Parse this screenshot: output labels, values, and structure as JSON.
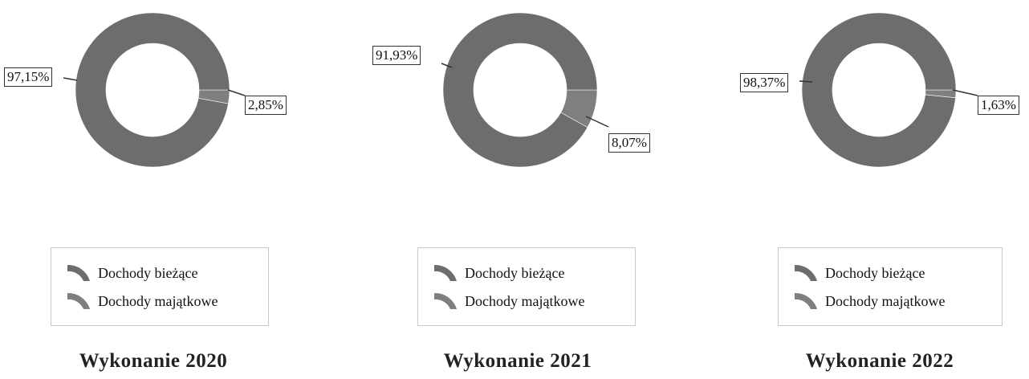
{
  "colors": {
    "biezace": "#6d6d6d",
    "majatkowe": "#7f7f7f",
    "leader": "#333333"
  },
  "legend": {
    "biezace_label": "Dochody bieżące",
    "majatkowe_label": "Dochody majątkowe"
  },
  "chart_data": [
    {
      "type": "pie",
      "variant": "donut",
      "title": "Wykonanie 2020",
      "categories": [
        "Dochody majątkowe",
        "Dochody bieżące"
      ],
      "values": [
        2.85,
        97.15
      ],
      "labels": [
        "2,85%",
        "97,15%"
      ]
    },
    {
      "type": "pie",
      "variant": "donut",
      "title": "Wykonanie 2021",
      "categories": [
        "Dochody majątkowe",
        "Dochody bieżące"
      ],
      "values": [
        8.07,
        91.93
      ],
      "labels": [
        "8,07%",
        "91,93%"
      ]
    },
    {
      "type": "pie",
      "variant": "donut",
      "title": "Wykonanie 2022",
      "categories": [
        "Dochody majątkowe",
        "Dochody bieżące"
      ],
      "values": [
        1.63,
        98.37
      ],
      "labels": [
        "1,63%",
        "98,37%"
      ]
    }
  ]
}
